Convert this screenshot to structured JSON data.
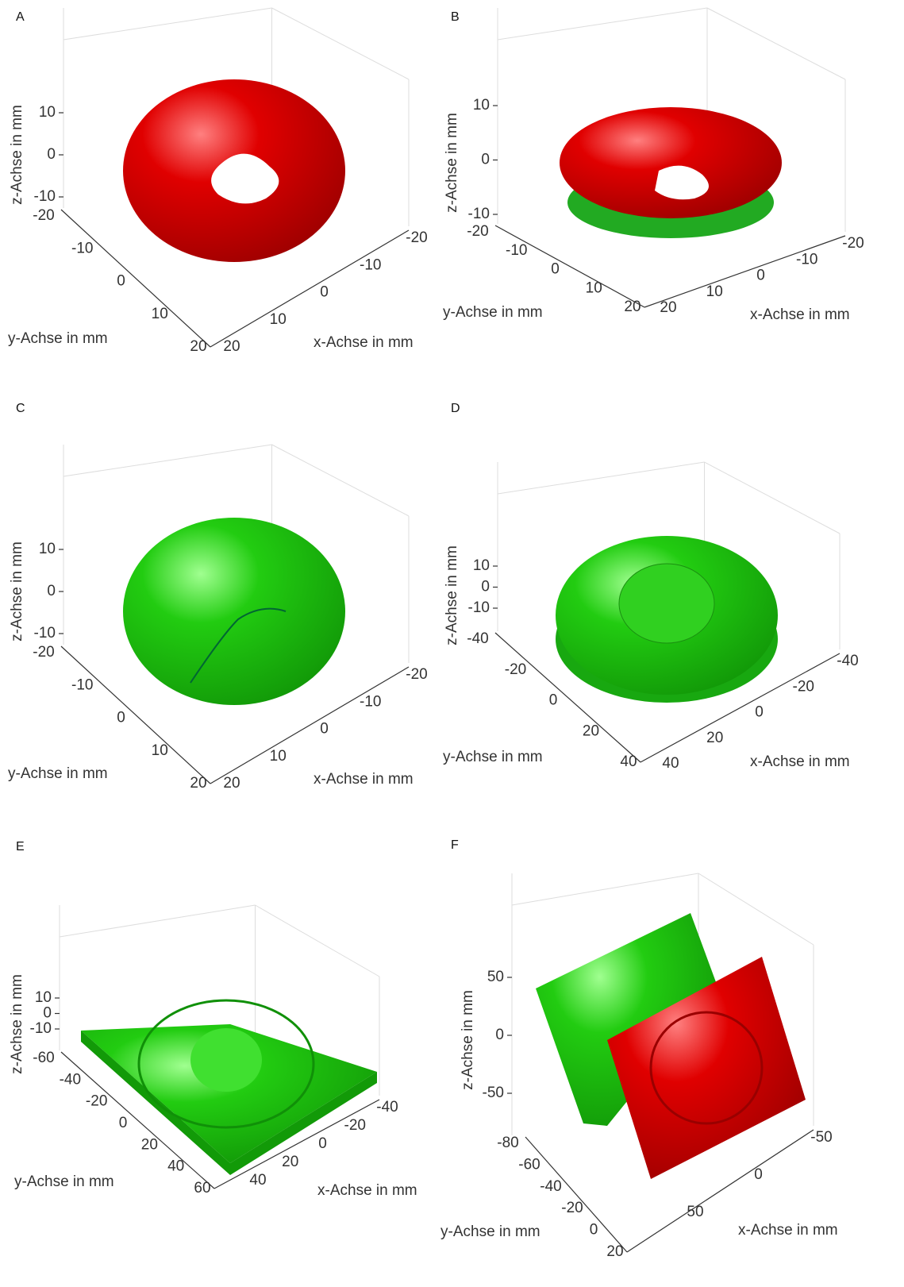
{
  "panels": [
    {
      "label": "A",
      "z_label": "z-Achse in mm",
      "y_label": "y-Achse in mm",
      "x_label": "x-Achse in mm",
      "z_ticks": [
        10,
        0,
        -10
      ],
      "y_ticks": [
        -20,
        -10,
        0,
        10,
        20
      ],
      "x_ticks": [
        20,
        10,
        0,
        -10,
        -20
      ]
    },
    {
      "label": "B",
      "z_label": "z-Achse in mm",
      "y_label": "y-Achse in mm",
      "x_label": "x-Achse in mm",
      "z_ticks": [
        10,
        0,
        -10
      ],
      "y_ticks": [
        -20,
        -10,
        0,
        10,
        20
      ],
      "x_ticks": [
        20,
        10,
        0,
        -10,
        -20
      ]
    },
    {
      "label": "C",
      "z_label": "z-Achse in mm",
      "y_label": "y-Achse in mm",
      "x_label": "x-Achse in mm",
      "z_ticks": [
        10,
        0,
        -10
      ],
      "y_ticks": [
        -20,
        -10,
        0,
        10,
        20
      ],
      "x_ticks": [
        20,
        10,
        0,
        -10,
        -20
      ]
    },
    {
      "label": "D",
      "z_label": "z-Achse in mm",
      "y_label": "y-Achse in mm",
      "x_label": "x-Achse in mm",
      "z_ticks": [
        10,
        0,
        -10
      ],
      "y_ticks": [
        -40,
        -20,
        0,
        20,
        40
      ],
      "x_ticks": [
        40,
        20,
        0,
        -20,
        -40
      ]
    },
    {
      "label": "E",
      "z_label": "z-Achse in mm",
      "y_label": "y-Achse in mm",
      "x_label": "x-Achse in mm",
      "z_ticks": [
        10,
        0,
        -10
      ],
      "y_ticks": [
        -60,
        -40,
        -20,
        0,
        20,
        40,
        60
      ],
      "x_ticks": [
        40,
        20,
        0,
        -20,
        -40
      ]
    },
    {
      "label": "F",
      "z_label": "z-Achse in mm",
      "y_label": "y-Achse in mm",
      "x_label": "x-Achse in mm",
      "z_ticks": [
        50,
        0,
        -50
      ],
      "y_ticks": [
        -80,
        -60,
        -40,
        -20,
        0,
        20
      ],
      "x_ticks": [
        50,
        0,
        -50
      ]
    }
  ]
}
